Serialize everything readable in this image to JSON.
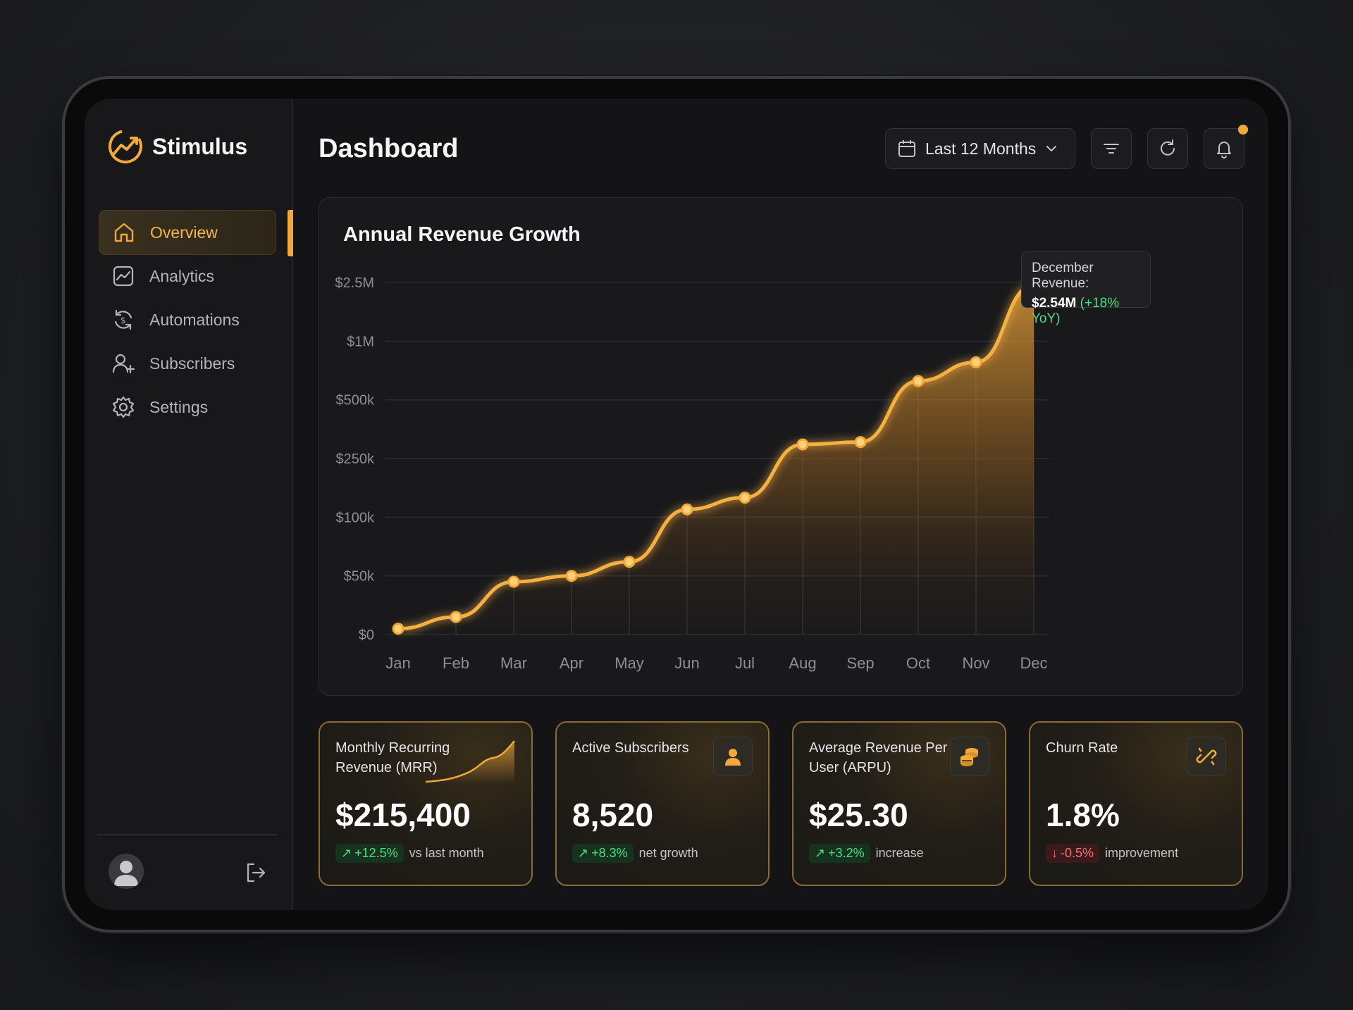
{
  "brand": {
    "name": "Stimulus"
  },
  "sidebar": {
    "items": [
      {
        "label": "Overview",
        "icon": "home-icon",
        "active": true
      },
      {
        "label": "Analytics",
        "icon": "analytics-icon"
      },
      {
        "label": "Automations",
        "icon": "automations-icon"
      },
      {
        "label": "Subscribers",
        "icon": "subscribers-icon"
      },
      {
        "label": "Settings",
        "icon": "gear-icon"
      }
    ]
  },
  "header": {
    "title": "Dashboard",
    "period_label": "Last 12 Months",
    "has_notification": true
  },
  "colors": {
    "accent": "#f2a93b",
    "positive": "#4ade80",
    "negative": "#f87171",
    "background": "#141416"
  },
  "chart_data": {
    "type": "area",
    "title": "Annual Revenue Growth",
    "categories": [
      "Jan",
      "Feb",
      "Mar",
      "Apr",
      "May",
      "Jun",
      "Jul",
      "Aug",
      "Sep",
      "Oct",
      "Nov",
      "Dec"
    ],
    "y_ticks": [
      "$0",
      "$50k",
      "$100k",
      "$250k",
      "$500k",
      "$1M",
      "$2.5M"
    ],
    "y_tick_values": [
      0,
      50000,
      100000,
      250000,
      500000,
      1000000,
      2500000
    ],
    "values": [
      5000,
      15000,
      45000,
      50000,
      62000,
      120000,
      150000,
      310000,
      320000,
      660000,
      820000,
      2540000
    ],
    "grid": true,
    "tooltip": {
      "label": "December Revenue:",
      "value": "$2.54M",
      "change": "(+18% YoY)"
    }
  },
  "kpis": [
    {
      "title": "Monthly Recurring Revenue (MRR)",
      "value": "$215,400",
      "change": "+12.5%",
      "direction": "up",
      "note": "vs last month",
      "icon": "sparkline-icon"
    },
    {
      "title": "Active Subscribers",
      "value": "8,520",
      "change": "+8.3%",
      "direction": "up",
      "note": "net growth",
      "icon": "user-icon"
    },
    {
      "title": "Average Revenue Per User (ARPU)",
      "value": "$25.30",
      "change": "+3.2%",
      "direction": "up",
      "note": "increase",
      "icon": "coins-icon"
    },
    {
      "title": "Churn Rate",
      "value": "1.8%",
      "change": "-0.5%",
      "direction": "down",
      "note": "improvement",
      "icon": "broken-link-icon"
    }
  ]
}
